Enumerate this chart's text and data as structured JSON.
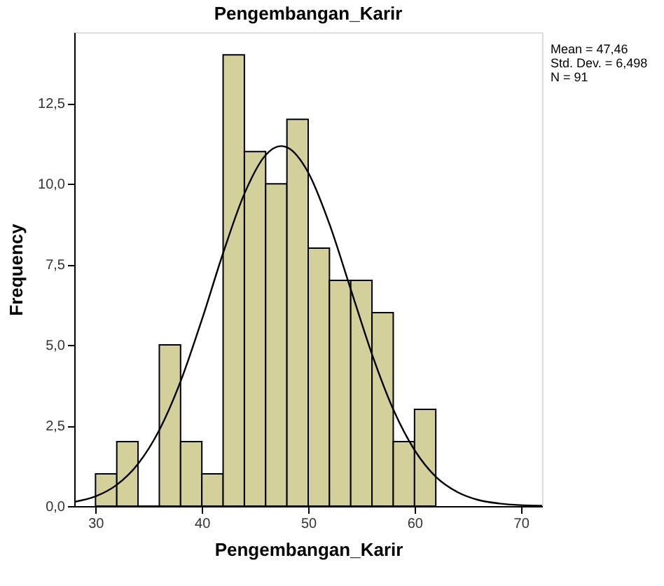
{
  "chart_data": {
    "type": "histogram",
    "title": "Pengembangan_Karir",
    "xlabel": "Pengembangan_Karir",
    "ylabel": "Frequency",
    "bins": [
      30,
      32,
      34,
      36,
      38,
      40,
      42,
      44,
      46,
      48,
      50,
      52,
      54,
      56,
      58,
      60,
      62
    ],
    "values": [
      1,
      2,
      0,
      5,
      2,
      1,
      14,
      11,
      10,
      12,
      8,
      7,
      7,
      6,
      2,
      3
    ],
    "color": "#d4d09c",
    "series": [
      {
        "type": "line",
        "color": "#000000",
        "x": [
          28,
          30,
          32,
          34,
          36,
          38,
          40,
          42,
          44,
          46,
          47.46,
          48,
          50,
          52,
          54,
          56,
          58,
          60,
          62,
          64,
          66,
          68,
          70,
          72
        ],
        "values": [
          0.13,
          0.3,
          0.66,
          1.31,
          2.36,
          3.87,
          5.78,
          7.85,
          9.69,
          10.89,
          11.17,
          11.13,
          10.35,
          8.75,
          6.73,
          4.71,
          3.0,
          1.74,
          0.91,
          0.44,
          0.19,
          0.08,
          0.03,
          0.01
        ]
      }
    ],
    "xlim": [
      28,
      72
    ],
    "xticks": [
      30,
      40,
      50,
      60,
      70
    ],
    "ylim": [
      0,
      14.7
    ],
    "yticks": [
      {
        "value": 0,
        "label": "0,0"
      },
      {
        "value": 2.5,
        "label": "2,5"
      },
      {
        "value": 5,
        "label": "5,0"
      },
      {
        "value": 7.5,
        "label": "7,5"
      },
      {
        "value": 10,
        "label": "10,0"
      },
      {
        "value": 12.5,
        "label": "12,5"
      }
    ],
    "grid": false,
    "annotations": [
      "Mean = 47,46",
      "Std. Dev. = 6,498",
      "N = 91"
    ]
  }
}
